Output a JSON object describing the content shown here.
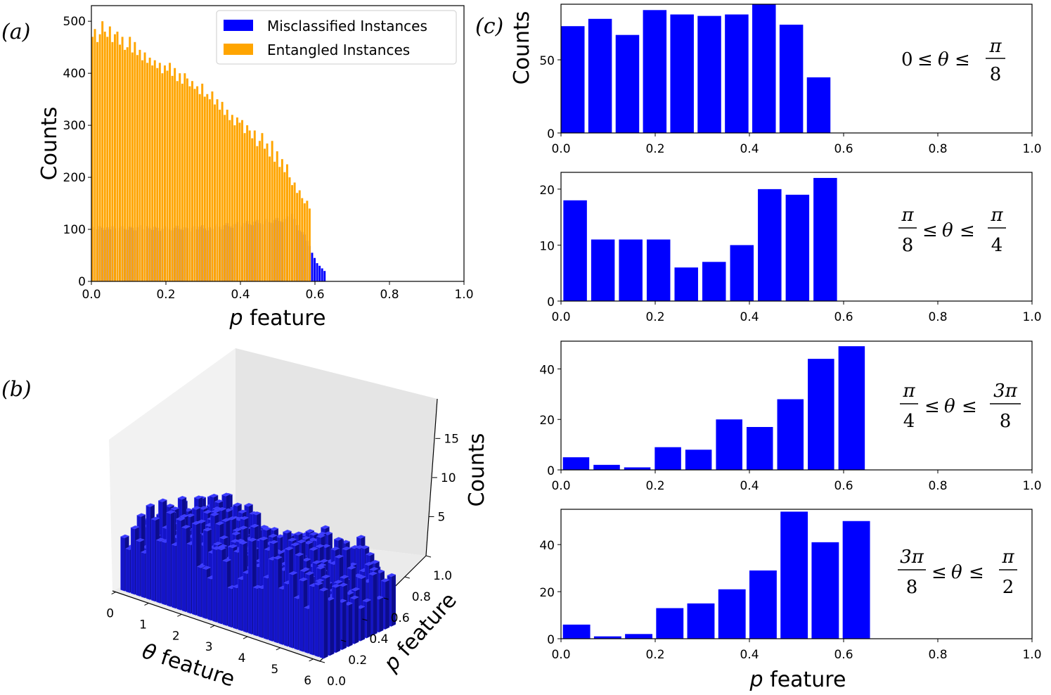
{
  "chart_data": [
    {
      "panel": "(a)",
      "type": "bar",
      "xlabel_var": "p",
      "xlabel_rest": " feature",
      "ylabel": "Counts",
      "xlim": [
        0.0,
        1.0
      ],
      "ylim": [
        0,
        530
      ],
      "xticks": [
        "0.0",
        "0.2",
        "0.4",
        "0.6",
        "0.8",
        "1.0"
      ],
      "xtick_values": [
        0.0,
        0.2,
        0.4,
        0.6,
        0.8,
        1.0
      ],
      "yticks": [
        "0",
        "100",
        "200",
        "300",
        "400",
        "500"
      ],
      "ytick_values": [
        0,
        100,
        200,
        300,
        400,
        500
      ],
      "legend_position": "top-right",
      "bin_width": 0.0067,
      "series": [
        {
          "name": "Misclassified Instances",
          "color": "#0000ff",
          "x_start": 0.0,
          "values": [
            105,
            104,
            100,
            106,
            103,
            99,
            104,
            100,
            106,
            102,
            97,
            103,
            106,
            101,
            99,
            105,
            103,
            98,
            104,
            108,
            101,
            100,
            106,
            102,
            99,
            105,
            103,
            97,
            101,
            106,
            104,
            100,
            98,
            103,
            107,
            101,
            99,
            104,
            102,
            96,
            103,
            106,
            100,
            105,
            108,
            102,
            98,
            104,
            101,
            106,
            110,
            105,
            100,
            108,
            112,
            106,
            103,
            110,
            114,
            108,
            105,
            112,
            116,
            110,
            108,
            115,
            118,
            112,
            110,
            116,
            120,
            114,
            112,
            118,
            122,
            116,
            114,
            120,
            125,
            124,
            130,
            120,
            108,
            98,
            95,
            90,
            78,
            68,
            55,
            45,
            35,
            30,
            25,
            20,
            0
          ]
        },
        {
          "name": "Entangled Instances",
          "color": "#ffa500",
          "x_start": 0.0,
          "values": [
            470,
            485,
            460,
            475,
            500,
            480,
            470,
            490,
            460,
            475,
            480,
            455,
            470,
            445,
            450,
            470,
            440,
            460,
            435,
            445,
            425,
            440,
            420,
            430,
            415,
            425,
            410,
            420,
            400,
            415,
            405,
            420,
            395,
            410,
            385,
            400,
            380,
            400,
            390,
            375,
            385,
            370,
            375,
            360,
            380,
            355,
            360,
            350,
            365,
            340,
            350,
            330,
            345,
            320,
            330,
            310,
            320,
            300,
            315,
            305,
            310,
            285,
            300,
            290,
            275,
            290,
            260,
            270,
            285,
            255,
            265,
            240,
            270,
            230,
            250,
            220,
            235,
            210,
            225,
            200,
            185,
            190,
            170,
            175,
            160,
            150,
            155,
            140,
            0,
            0,
            0,
            0,
            0,
            0,
            0
          ]
        }
      ]
    },
    {
      "panel": "(b)",
      "type": "bar3d",
      "xlabel_var": "θ",
      "xlabel_rest": " feature",
      "ylabel_var": "p",
      "ylabel_rest": " feature",
      "zlabel": "Counts",
      "xticks": [
        "0",
        "1",
        "2",
        "3",
        "4",
        "5",
        "6"
      ],
      "yticks": [
        "0.0",
        "0.2",
        "0.4",
        "0.6",
        "0.8",
        "1.0"
      ],
      "zticks": [
        "5",
        "10",
        "15"
      ],
      "zlim": [
        0,
        18
      ],
      "color": "#1a1ad0"
    },
    {
      "panel": "(c)",
      "type": "bar",
      "xlabel_var": "p",
      "xlabel_rest": " feature",
      "ylabel": "Counts",
      "xlim": [
        0.0,
        1.0
      ],
      "xticks": [
        "0.0",
        "0.2",
        "0.4",
        "0.6",
        "0.8",
        "1.0"
      ],
      "xtick_values": [
        0.0,
        0.2,
        0.4,
        0.6,
        0.8,
        1.0
      ],
      "color": "#0000ff",
      "subplots": [
        {
          "annotation": {
            "left": "0",
            "var": "θ",
            "num2": "π",
            "den2": "8"
          },
          "ylim": [
            0,
            88
          ],
          "yticks": [
            "0",
            "50"
          ],
          "ytick_values": [
            0,
            50
          ],
          "x": [
            0.025,
            0.083,
            0.141,
            0.199,
            0.257,
            0.315,
            0.373,
            0.431,
            0.489,
            0.547
          ],
          "width": 0.05,
          "values": [
            73,
            78,
            67,
            84,
            81,
            80,
            81,
            88,
            74,
            38
          ]
        },
        {
          "annotation": {
            "num1": "π",
            "den1": "8",
            "var": "θ",
            "num2": "π",
            "den2": "4"
          },
          "ylim": [
            0,
            23
          ],
          "yticks": [
            "0",
            "10",
            "20"
          ],
          "ytick_values": [
            0,
            10,
            20
          ],
          "x": [
            0.03,
            0.089,
            0.148,
            0.207,
            0.266,
            0.325,
            0.384,
            0.443,
            0.502,
            0.561
          ],
          "width": 0.05,
          "values": [
            18,
            11,
            11,
            11,
            6,
            7,
            10,
            20,
            19,
            22
          ]
        },
        {
          "annotation": {
            "num1": "π",
            "den1": "4",
            "var": "θ",
            "num2": "3π",
            "den2": "8"
          },
          "ylim": [
            0,
            51
          ],
          "yticks": [
            "0",
            "20",
            "40"
          ],
          "ytick_values": [
            0,
            20,
            40
          ],
          "x": [
            0.032,
            0.097,
            0.162,
            0.227,
            0.292,
            0.357,
            0.422,
            0.487,
            0.552,
            0.617
          ],
          "width": 0.056,
          "values": [
            5,
            2,
            1,
            9,
            8,
            20,
            17,
            28,
            44,
            49
          ]
        },
        {
          "annotation": {
            "num1": "3π",
            "den1": "8",
            "var": "θ",
            "num2": "π",
            "den2": "2"
          },
          "ylim": [
            0,
            55
          ],
          "yticks": [
            "0",
            "20",
            "40"
          ],
          "ytick_values": [
            0,
            20,
            40
          ],
          "x": [
            0.033,
            0.099,
            0.165,
            0.231,
            0.297,
            0.363,
            0.429,
            0.495,
            0.561,
            0.627
          ],
          "width": 0.058,
          "values": [
            6,
            1,
            2,
            13,
            15,
            21,
            29,
            54,
            41,
            50
          ]
        }
      ]
    }
  ]
}
